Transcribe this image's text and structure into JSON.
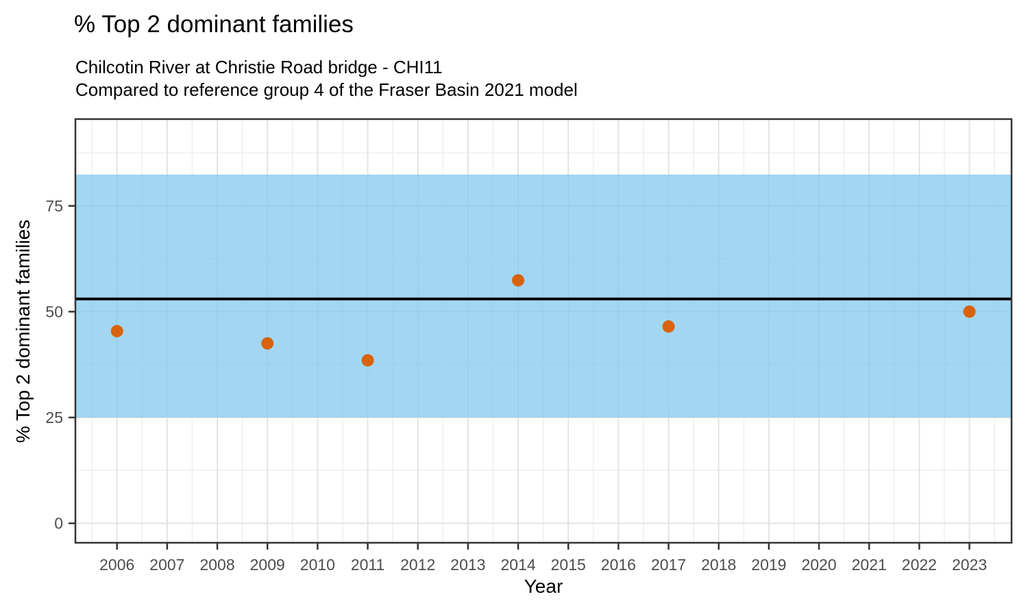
{
  "header": {
    "title": "% Top 2 dominant families",
    "subtitle_lines": [
      "Chilcotin River at Christie Road bridge - CHI11",
      "Compared to reference group 4 of the Fraser Basin 2021 model"
    ]
  },
  "chart_data": {
    "type": "scatter",
    "title": "% Top 2 dominant families",
    "subtitle": [
      "Chilcotin River at Christie Road bridge - CHI11",
      "Compared to reference group 4 of the Fraser Basin 2021 model"
    ],
    "xlabel": "Year",
    "ylabel": "% Top 2 dominant families",
    "x": [
      2006,
      2009,
      2011,
      2014,
      2017,
      2023
    ],
    "y": [
      45.4,
      42.5,
      38.5,
      57.4,
      46.5,
      50.0
    ],
    "x_ticks": [
      2006,
      2007,
      2008,
      2009,
      2010,
      2011,
      2012,
      2013,
      2014,
      2015,
      2016,
      2017,
      2018,
      2019,
      2020,
      2021,
      2022,
      2023
    ],
    "y_ticks": [
      0,
      25,
      50,
      75
    ],
    "xlim": [
      2005.17,
      2023.84
    ],
    "ylim": [
      -4.6,
      95.5
    ],
    "grid": "major-and-minor",
    "legend": "none",
    "reference_band": {
      "from": 25.0,
      "to": 82.4
    },
    "reference_line": {
      "value": 53.0
    }
  },
  "style": {
    "point_color": "#D9620C",
    "band_color": "#84C8EB",
    "band_opacity": 0.75,
    "reference_line_color": "#000000",
    "panel_border_color": "#333333",
    "tick_color": "#333333",
    "grid_major_color": "#e3e3e3",
    "grid_minor_color": "#efefef",
    "tick_label_color": "#4d4d4d",
    "text_color": "#000000",
    "background_color": "#ffffff"
  }
}
